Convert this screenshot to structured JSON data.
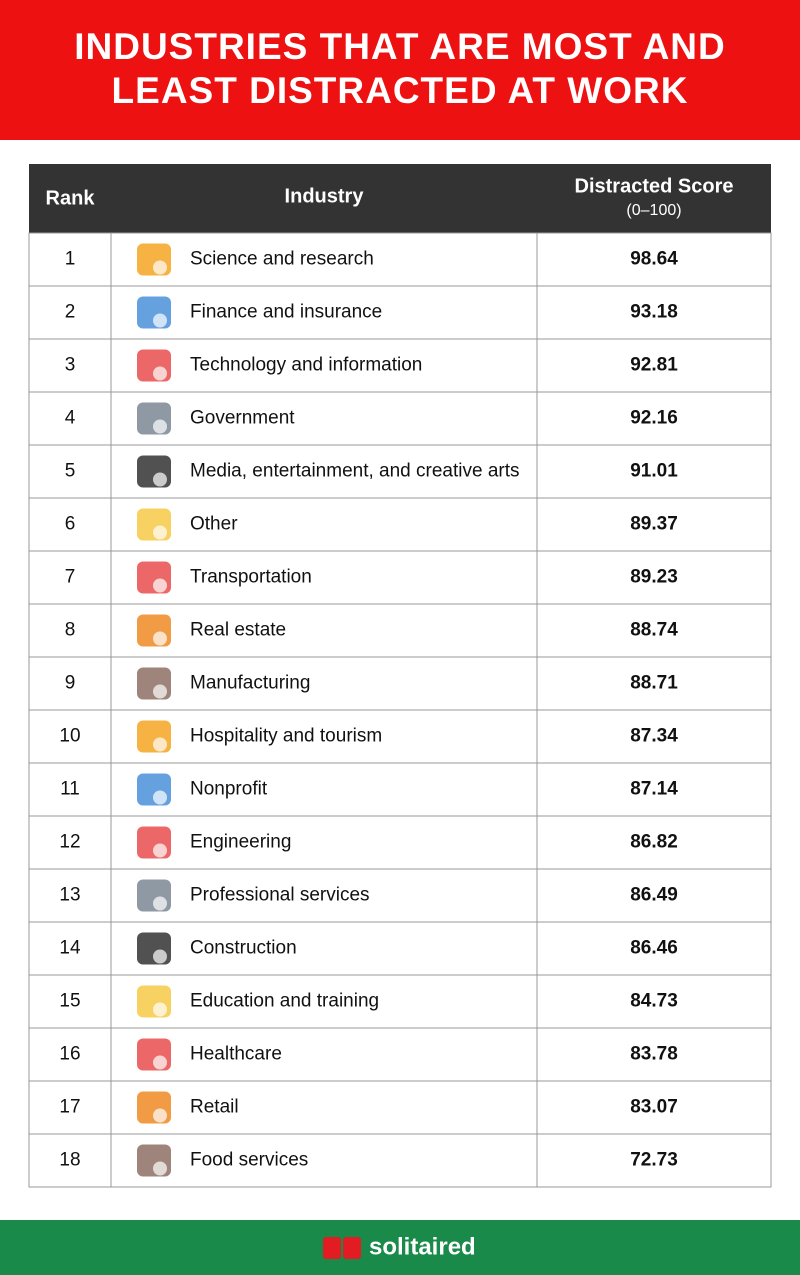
{
  "header": {
    "title": [
      "INDUSTRIES THAT ARE MOST AND",
      "LEAST DISTRACTED AT WORK"
    ]
  },
  "table": {
    "columns": [
      "Rank",
      "Industry",
      "Distracted Score"
    ],
    "score_note": "(0–100)",
    "rows": [
      [
        1,
        "Science and research",
        98.64
      ],
      [
        2,
        "Finance and insurance",
        93.18
      ],
      [
        3,
        "Technology and information",
        92.81
      ],
      [
        4,
        "Government",
        92.16
      ],
      [
        5,
        "Media, entertainment, and creative arts",
        91.01
      ],
      [
        6,
        "Other",
        89.37
      ],
      [
        7,
        "Transportation",
        89.23
      ],
      [
        8,
        "Real estate",
        88.74
      ],
      [
        9,
        "Manufacturing",
        88.71
      ],
      [
        10,
        "Hospitality and tourism",
        87.34
      ],
      [
        11,
        "Nonprofit",
        87.14
      ],
      [
        12,
        "Engineering",
        86.82
      ],
      [
        13,
        "Professional services",
        86.49
      ],
      [
        14,
        "Construction",
        86.46
      ],
      [
        15,
        "Education and training",
        84.73
      ],
      [
        16,
        "Healthcare",
        83.78
      ],
      [
        17,
        "Retail",
        83.07
      ],
      [
        18,
        "Food services",
        72.73
      ]
    ]
  },
  "footer": {
    "brand": "solitaired"
  }
}
